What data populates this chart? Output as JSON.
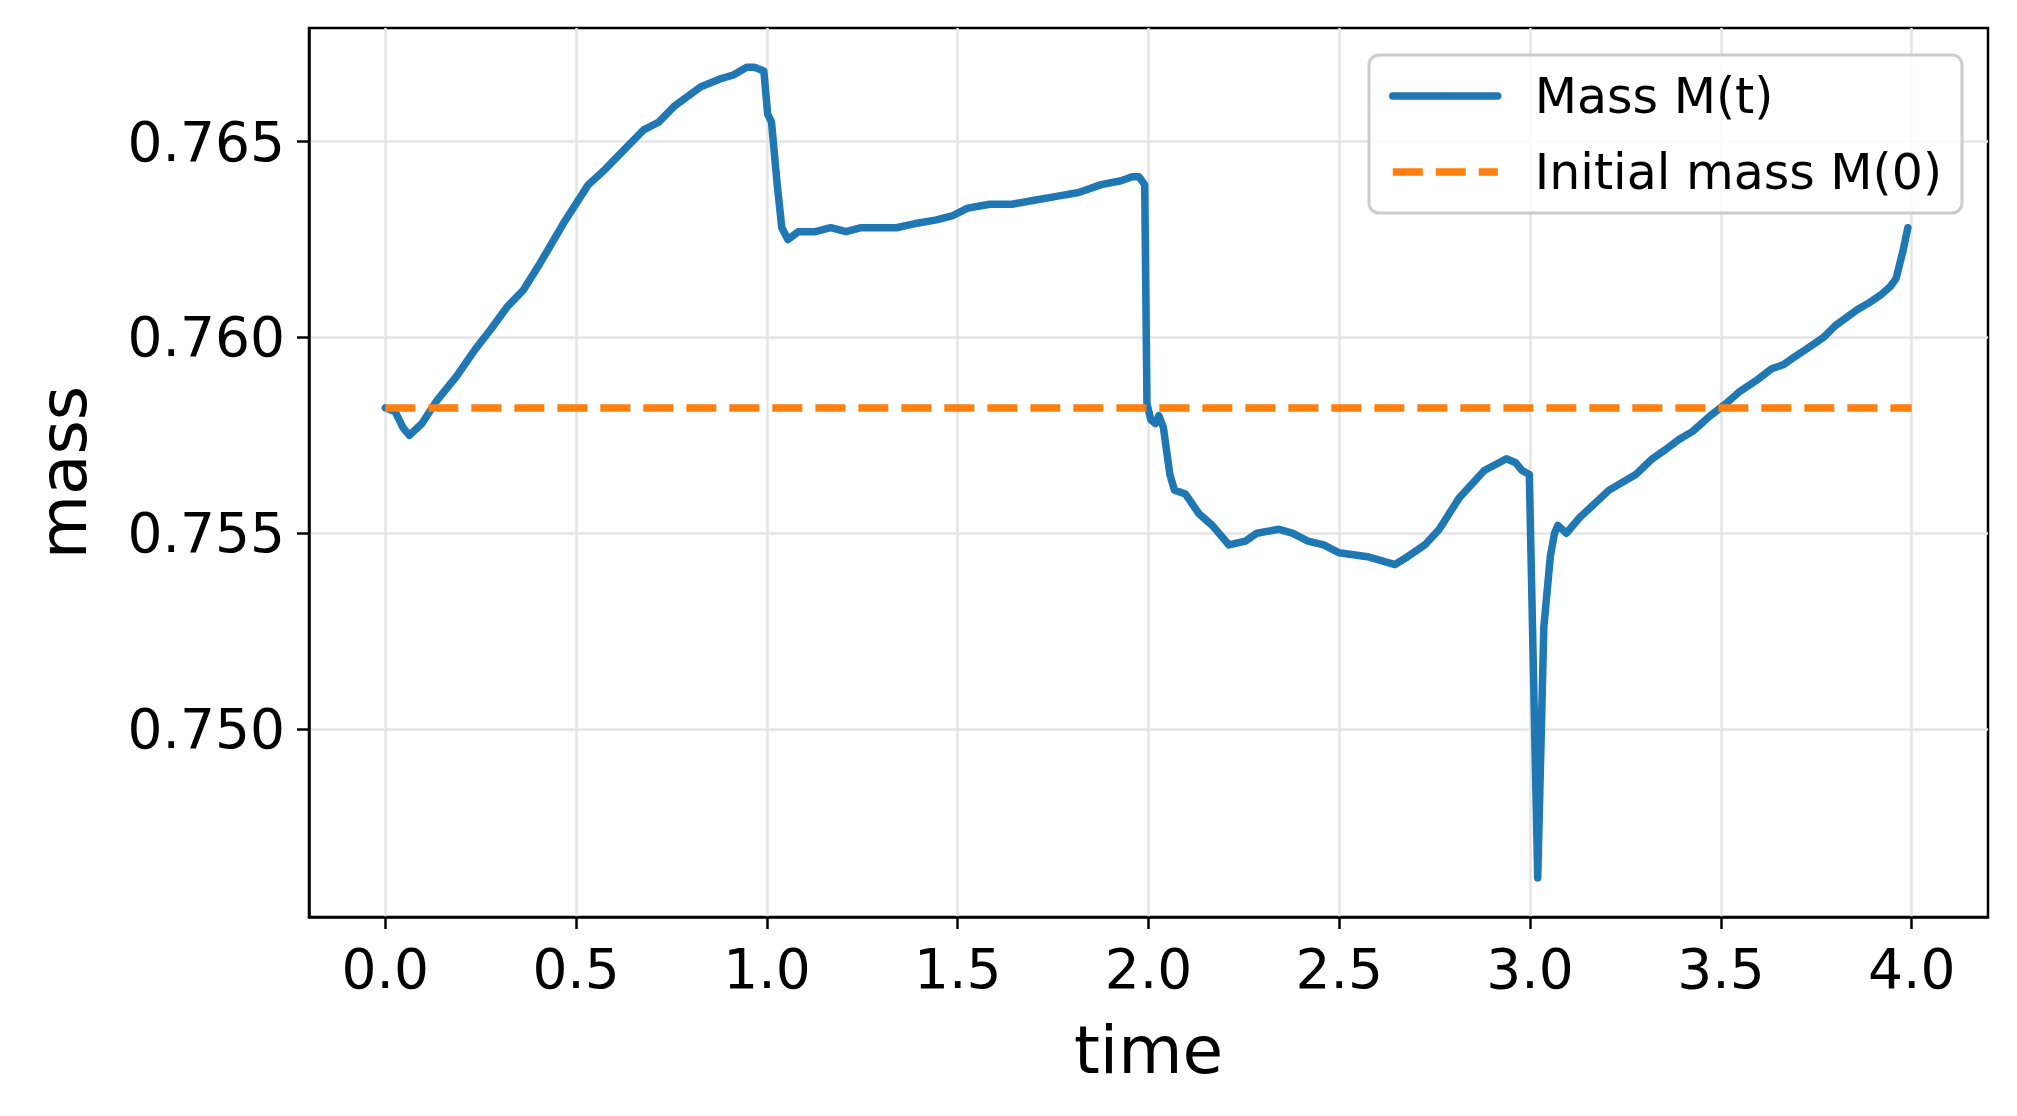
{
  "chart_data": {
    "type": "line",
    "xlabel": "time",
    "ylabel": "mass",
    "xlim": [
      -0.2,
      4.2
    ],
    "xticks": [
      {
        "value": 0,
        "label": "0.0"
      },
      0.5,
      {
        "value": 1,
        "label": "1.0"
      },
      1.5,
      {
        "value": 2,
        "label": "2.0"
      },
      2.5,
      {
        "value": 3,
        "label": "3.0"
      },
      3.5,
      {
        "value": 4,
        "label": "4.0"
      }
    ],
    "ylim": [
      0.7452,
      0.7679
    ],
    "yticks": [
      {
        "value": 0.75,
        "label": "0.750"
      },
      0.755,
      {
        "value": 0.76,
        "label": "0.760"
      },
      0.765
    ],
    "grid": true,
    "legend": "top right",
    "series": [
      {
        "name": "Mass M(t)",
        "color": "#1f77b4",
        "line_style": "solid",
        "x": [
          0,
          0.026,
          0.046,
          0.063,
          0.096,
          0.136,
          0.186,
          0.236,
          0.276,
          0.321,
          0.361,
          0.406,
          0.466,
          0.532,
          0.577,
          0.637,
          0.677,
          0.717,
          0.757,
          0.827,
          0.877,
          0.912,
          0.947,
          0.967,
          0.992,
          1.002,
          1.012,
          1.027,
          1.039,
          1.055,
          1.082,
          1.127,
          1.167,
          1.207,
          1.247,
          1.292,
          1.339,
          1.386,
          1.444,
          1.485,
          1.526,
          1.584,
          1.642,
          1.701,
          1.759,
          1.817,
          1.876,
          1.928,
          1.957,
          1.975,
          1.99,
          1.996,
          2.006,
          2.018,
          2.027,
          2.039,
          2.056,
          2.068,
          2.097,
          2.132,
          2.167,
          2.211,
          2.254,
          2.284,
          2.342,
          2.377,
          2.418,
          2.459,
          2.5,
          2.574,
          2.646,
          2.679,
          2.724,
          2.762,
          2.814,
          2.88,
          2.938,
          2.962,
          2.979,
          2.998,
          3.02,
          3.036,
          3.053,
          3.064,
          3.073,
          3.095,
          3.13,
          3.207,
          3.277,
          3.32,
          3.35,
          3.391,
          3.426,
          3.472,
          3.512,
          3.547,
          3.593,
          3.633,
          3.663,
          3.693,
          3.724,
          3.769,
          3.8,
          3.856,
          3.891,
          3.921,
          3.944,
          3.959,
          3.977,
          3.99
        ],
        "values": [
          0.7582,
          0.7581,
          0.7577,
          0.7575,
          0.7578,
          0.7584,
          0.759,
          0.7597,
          0.7602,
          0.7608,
          0.7612,
          0.7619,
          0.7629,
          0.7639,
          0.7643,
          0.7649,
          0.7653,
          0.7655,
          0.7659,
          0.7664,
          0.7666,
          0.7667,
          0.7669,
          0.7669,
          0.7668,
          0.7657,
          0.7655,
          0.7639,
          0.7628,
          0.7625,
          0.7627,
          0.7627,
          0.7628,
          0.7627,
          0.7628,
          0.7628,
          0.7628,
          0.7629,
          0.763,
          0.7631,
          0.7633,
          0.7634,
          0.7634,
          0.7635,
          0.7636,
          0.7637,
          0.7639,
          0.764,
          0.7641,
          0.7641,
          0.7639,
          0.7583,
          0.7579,
          0.7578,
          0.758,
          0.7577,
          0.7565,
          0.7561,
          0.756,
          0.7555,
          0.7552,
          0.7547,
          0.7548,
          0.755,
          0.7551,
          0.755,
          0.7548,
          0.7547,
          0.7545,
          0.7544,
          0.7542,
          0.7544,
          0.7547,
          0.7551,
          0.7559,
          0.7566,
          0.7569,
          0.7568,
          0.7566,
          0.7565,
          0.7462,
          0.7526,
          0.7544,
          0.755,
          0.7552,
          0.755,
          0.7554,
          0.7561,
          0.7565,
          0.7569,
          0.7571,
          0.7574,
          0.7576,
          0.758,
          0.7583,
          0.7586,
          0.7589,
          0.7592,
          0.7593,
          0.7595,
          0.7597,
          0.76,
          0.7603,
          0.7607,
          0.7609,
          0.7611,
          0.7613,
          0.7615,
          0.7622,
          0.7628
        ]
      },
      {
        "name": "Initial mass M(0)",
        "color": "#ff7f0e",
        "line_style": "dashed",
        "x": [
          0,
          4
        ],
        "values": [
          0.7582,
          0.7582
        ]
      }
    ]
  }
}
